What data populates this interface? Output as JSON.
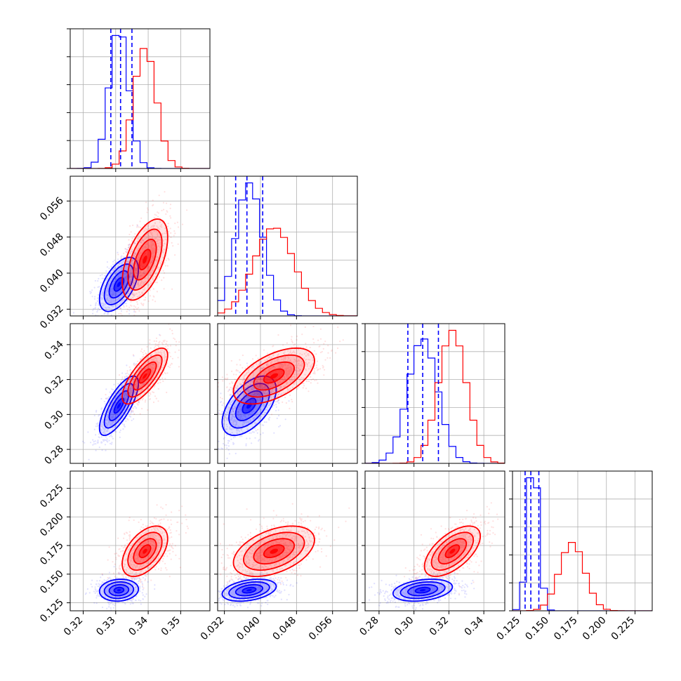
{
  "chart_data": {
    "type": "corner",
    "grid": true,
    "colors": {
      "series_a": "#0000ff",
      "series_b": "#ff0000"
    },
    "series": [
      {
        "color": "#0000ff",
        "mean": [
          0.331,
          0.0375,
          0.305,
          0.136
        ],
        "sigma": [
          0.003,
          0.003,
          0.0085,
          0.0048
        ],
        "corr": {
          "1-0": 0.55,
          "2-0": 0.75,
          "2-1": 0.55,
          "3-0": 0.1,
          "3-1": 0.35,
          "3-2": 0.3
        },
        "quantiles_16_50_84": [
          [
            0.3285,
            0.3315,
            0.335
          ],
          [
            0.0345,
            0.037,
            0.0405
          ],
          [
            0.2965,
            0.305,
            0.314
          ],
          [
            0.129,
            0.134,
            0.141
          ]
        ]
      },
      {
        "color": "#ff0000",
        "mean": [
          0.339,
          0.043,
          0.322,
          0.17
        ],
        "sigma": [
          0.0035,
          0.0045,
          0.008,
          0.011
        ],
        "corr": {
          "1-0": 0.55,
          "2-0": 0.75,
          "2-1": 0.55,
          "3-0": 0.5,
          "3-1": 0.45,
          "3-2": 0.6
        }
      }
    ],
    "params": [
      {
        "range": [
          0.316,
          0.359
        ],
        "ticks": [
          0.32,
          0.33,
          0.34,
          0.35
        ],
        "tick_labels": [
          "0.32",
          "0.33",
          "0.34",
          "0.35"
        ]
      },
      {
        "range": [
          0.0305,
          0.0615
        ],
        "ticks": [
          0.032,
          0.04,
          0.048,
          0.056
        ],
        "tick_labels": [
          "0.032",
          "0.040",
          "0.048",
          "0.056"
        ]
      },
      {
        "range": [
          0.272,
          0.352
        ],
        "ticks": [
          0.28,
          0.3,
          0.32,
          0.34
        ],
        "tick_labels": [
          "0.28",
          "0.30",
          "0.32",
          "0.34"
        ]
      },
      {
        "range": [
          0.118,
          0.24
        ],
        "ticks": [
          0.125,
          0.15,
          0.175,
          0.2,
          0.225
        ],
        "tick_labels": [
          "0.125",
          "0.150",
          "0.175",
          "0.200",
          "0.225"
        ]
      }
    ]
  }
}
